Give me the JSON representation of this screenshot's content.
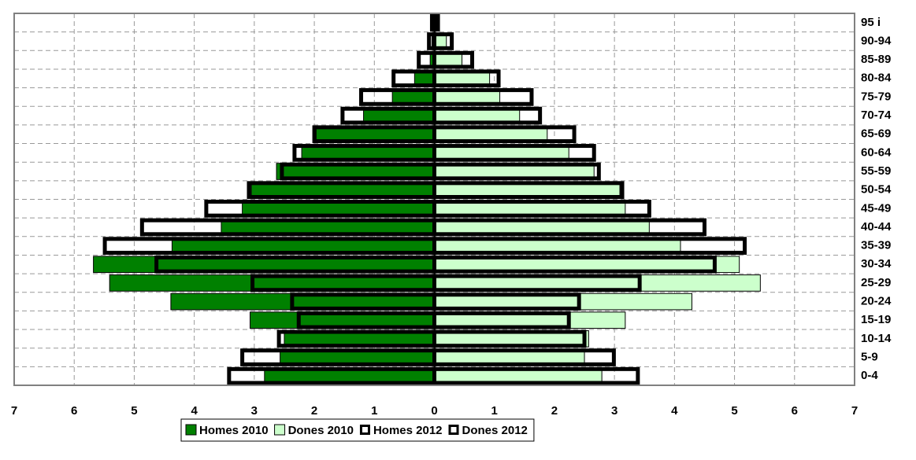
{
  "chart_data": {
    "type": "pyramid",
    "categories": [
      "0-4",
      "5-9",
      "10-14",
      "15-19",
      "20-24",
      "25-29",
      "30-34",
      "35-39",
      "40-44",
      "45-49",
      "50-54",
      "55-59",
      "60-64",
      "65-69",
      "70-74",
      "75-79",
      "80-84",
      "85-89",
      "90-94",
      "95 i"
    ],
    "series": [
      {
        "name": "Homes 2010",
        "color": "#008000",
        "filled": true,
        "side": "left",
        "values": [
          2.83,
          2.57,
          2.5,
          3.07,
          4.39,
          5.41,
          5.68,
          4.37,
          3.55,
          3.2,
          3.05,
          2.63,
          2.21,
          1.97,
          1.18,
          0.7,
          0.33,
          0.07,
          0.04,
          0.02
        ]
      },
      {
        "name": "Dones 2010",
        "color": "#ccffcc",
        "filled": true,
        "side": "right",
        "values": [
          2.79,
          2.5,
          2.57,
          3.18,
          4.29,
          5.43,
          5.08,
          4.1,
          3.58,
          3.18,
          3.09,
          2.66,
          2.24,
          1.88,
          1.42,
          1.09,
          0.92,
          0.46,
          0.2,
          0.03
        ]
      },
      {
        "name": "Homes 2012",
        "color": "#000000",
        "filled": false,
        "side": "left",
        "values": [
          3.42,
          3.2,
          2.59,
          2.26,
          2.37,
          3.03,
          4.63,
          5.49,
          4.87,
          3.8,
          3.09,
          2.54,
          2.33,
          2.0,
          1.53,
          1.22,
          0.68,
          0.26,
          0.09,
          0.04
        ]
      },
      {
        "name": "Dones 2012",
        "color": "#000000",
        "filled": false,
        "side": "right",
        "values": [
          3.39,
          2.99,
          2.5,
          2.24,
          2.41,
          3.42,
          4.67,
          5.17,
          4.5,
          3.58,
          3.13,
          2.74,
          2.66,
          2.33,
          1.76,
          1.62,
          1.07,
          0.63,
          0.29,
          0.06
        ]
      }
    ],
    "xlim": [
      -7,
      7
    ],
    "xticks": [
      {
        "value": -7,
        "label": "7"
      },
      {
        "value": -6,
        "label": "6"
      },
      {
        "value": -5,
        "label": "5"
      },
      {
        "value": -4,
        "label": "4"
      },
      {
        "value": -3,
        "label": "3"
      },
      {
        "value": -2,
        "label": "2"
      },
      {
        "value": -1,
        "label": "1"
      },
      0,
      1,
      2,
      3,
      4,
      5,
      6,
      7
    ],
    "grid": true
  }
}
